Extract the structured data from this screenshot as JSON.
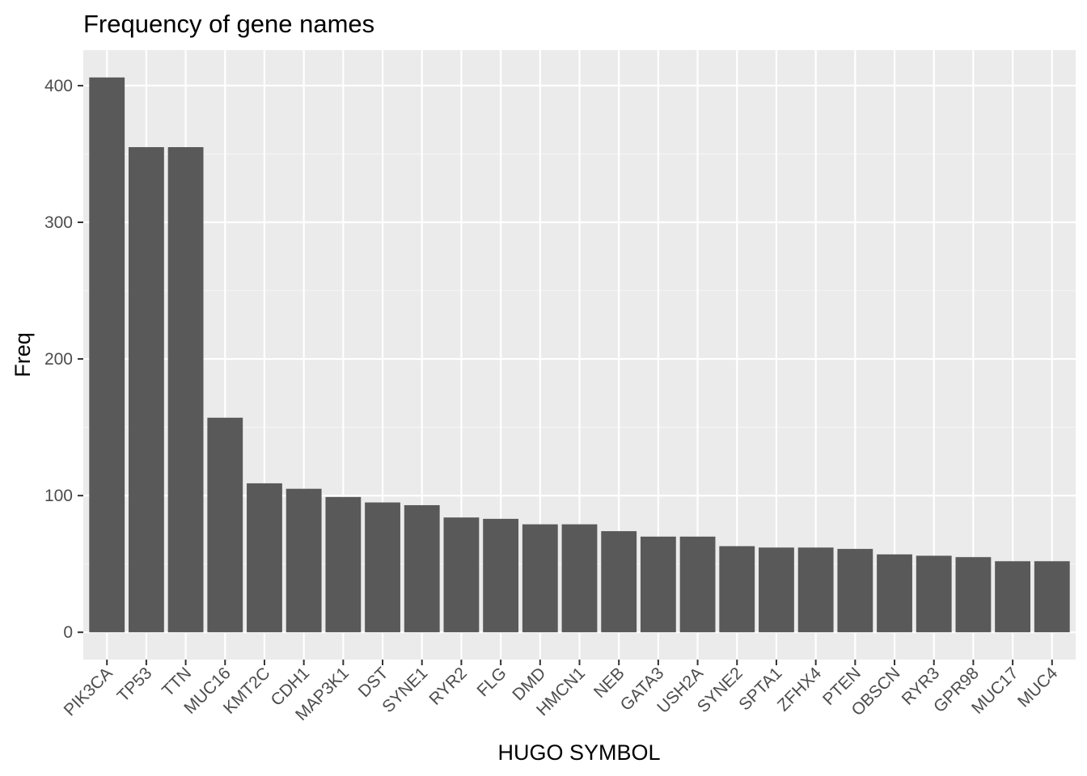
{
  "chart_data": {
    "type": "bar",
    "title": "Frequency of gene names",
    "xlabel": "HUGO SYMBOL",
    "ylabel": "Freq",
    "categories": [
      "PIK3CA",
      "TP53",
      "TTN",
      "MUC16",
      "KMT2C",
      "CDH1",
      "MAP3K1",
      "DST",
      "SYNE1",
      "RYR2",
      "FLG",
      "DMD",
      "HMCN1",
      "NEB",
      "GATA3",
      "USH2A",
      "SYNE2",
      "SPTA1",
      "ZFHX4",
      "PTEN",
      "OBSCN",
      "RYR3",
      "GPR98",
      "MUC17",
      "MUC4"
    ],
    "values": [
      406,
      355,
      355,
      157,
      109,
      105,
      99,
      95,
      93,
      84,
      83,
      79,
      79,
      74,
      70,
      70,
      63,
      62,
      62,
      61,
      57,
      56,
      55,
      52,
      52
    ],
    "ylim": [
      -20,
      426
    ],
    "yticks": [
      0,
      100,
      200,
      300,
      400
    ],
    "grid": true,
    "legend": "none",
    "colors": {
      "bar": "#595959",
      "panel": "#ebebeb",
      "grid_major": "#ffffff",
      "grid_minor": "#f4f4f4",
      "tick_label": "#4d4d4d",
      "text": "#000000"
    }
  }
}
